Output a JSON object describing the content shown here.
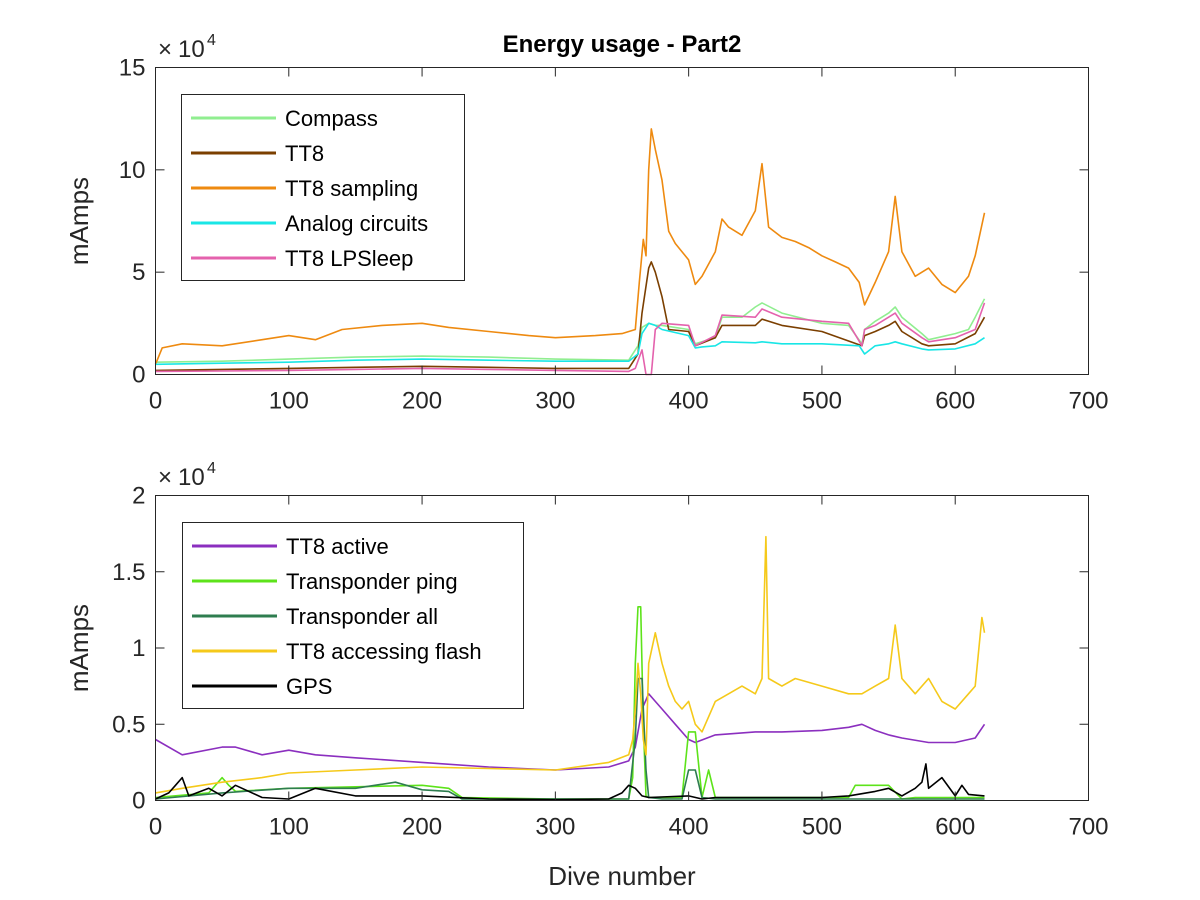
{
  "chart_data": [
    {
      "type": "line",
      "title": "Energy usage - Part2",
      "xlabel": "",
      "ylabel": "mAmps",
      "xlim": [
        0,
        700
      ],
      "ylim": [
        0,
        150000
      ],
      "y_multiplier": {
        "base": "10",
        "exponent": "4"
      },
      "x_ticks": [
        0,
        100,
        200,
        300,
        400,
        500,
        600,
        700
      ],
      "y_ticks": [
        0,
        5,
        10,
        15
      ],
      "grid": false,
      "legend_position": "top-left",
      "series": [
        {
          "name": "Compass",
          "color": "#90ee90",
          "x": [
            0,
            50,
            100,
            150,
            200,
            250,
            300,
            355,
            362,
            365,
            370,
            375,
            380,
            400,
            405,
            420,
            425,
            440,
            450,
            455,
            470,
            500,
            520,
            530,
            532,
            540,
            550,
            555,
            560,
            575,
            580,
            600,
            610,
            615,
            622
          ],
          "y": [
            6000,
            6500,
            7500,
            8500,
            9000,
            8500,
            7500,
            7000,
            14000,
            23000,
            25000,
            24000,
            24000,
            22000,
            15000,
            18000,
            28000,
            28000,
            33000,
            35000,
            30000,
            25000,
            24000,
            15000,
            22000,
            26000,
            30000,
            33000,
            28000,
            20000,
            17000,
            20000,
            22000,
            28000,
            37000
          ]
        },
        {
          "name": "TT8",
          "color": "#7b3f00",
          "x": [
            0,
            50,
            100,
            150,
            200,
            250,
            300,
            355,
            362,
            365,
            370,
            372,
            375,
            380,
            385,
            400,
            405,
            420,
            425,
            450,
            455,
            470,
            500,
            530,
            532,
            540,
            550,
            555,
            560,
            575,
            580,
            600,
            615,
            622
          ],
          "y": [
            2000,
            2500,
            3000,
            3500,
            4000,
            3500,
            3000,
            3000,
            10000,
            30000,
            52000,
            55000,
            50000,
            38000,
            22000,
            21000,
            14000,
            18000,
            24000,
            24000,
            27000,
            24000,
            21000,
            14000,
            19000,
            21000,
            24000,
            26000,
            21000,
            15000,
            14000,
            15000,
            20000,
            28000
          ]
        },
        {
          "name": "TT8 sampling",
          "color": "#ee8a10",
          "x": [
            0,
            5,
            20,
            50,
            80,
            100,
            120,
            140,
            170,
            200,
            220,
            250,
            280,
            300,
            330,
            350,
            360,
            363,
            366,
            368,
            370,
            372,
            375,
            380,
            385,
            390,
            395,
            400,
            405,
            410,
            420,
            425,
            430,
            440,
            450,
            455,
            460,
            470,
            480,
            490,
            500,
            510,
            520,
            528,
            532,
            540,
            550,
            555,
            560,
            570,
            580,
            590,
            600,
            610,
            615,
            622
          ],
          "y": [
            5000,
            13000,
            15000,
            14000,
            17000,
            19000,
            17000,
            22000,
            24000,
            25000,
            23000,
            21000,
            19000,
            18000,
            19000,
            20000,
            22000,
            45000,
            66000,
            58000,
            100000,
            120000,
            110000,
            95000,
            70000,
            64000,
            60000,
            56000,
            44000,
            48000,
            60000,
            76000,
            72000,
            68000,
            80000,
            103000,
            72000,
            67000,
            65000,
            62000,
            58000,
            55000,
            52000,
            45000,
            34000,
            45000,
            60000,
            87000,
            60000,
            48000,
            52000,
            44000,
            40000,
            48000,
            58000,
            79000
          ]
        },
        {
          "name": "Analog circuits",
          "color": "#19e6e6",
          "x": [
            0,
            50,
            100,
            150,
            200,
            250,
            300,
            355,
            362,
            365,
            370,
            375,
            380,
            400,
            405,
            410,
            420,
            425,
            450,
            455,
            470,
            500,
            528,
            532,
            540,
            550,
            555,
            560,
            575,
            580,
            600,
            615,
            622
          ],
          "y": [
            5000,
            5500,
            6000,
            7000,
            7500,
            7000,
            6500,
            6500,
            10000,
            20000,
            25000,
            24000,
            22000,
            19000,
            13000,
            13500,
            14000,
            16000,
            15500,
            16000,
            15000,
            15000,
            14000,
            10000,
            14000,
            15000,
            16000,
            15000,
            12500,
            12000,
            12500,
            15000,
            18000
          ]
        },
        {
          "name": "TT8 LPSleep",
          "color": "#e462ad",
          "x": [
            0,
            50,
            100,
            150,
            200,
            250,
            300,
            355,
            360,
            365,
            368,
            370,
            372,
            375,
            380,
            400,
            405,
            420,
            425,
            450,
            455,
            470,
            500,
            520,
            530,
            532,
            540,
            550,
            555,
            560,
            575,
            580,
            600,
            615,
            622
          ],
          "y": [
            1500,
            1700,
            2000,
            2500,
            3000,
            2500,
            2000,
            1500,
            3000,
            12000,
            0,
            0,
            0,
            22000,
            25000,
            24000,
            14000,
            19000,
            29000,
            28000,
            32000,
            28000,
            26000,
            25000,
            14000,
            22000,
            24000,
            28000,
            30000,
            25000,
            18000,
            16000,
            18000,
            22000,
            35000
          ]
        }
      ]
    },
    {
      "type": "line",
      "title": "",
      "xlabel": "Dive number",
      "ylabel": "mAmps",
      "xlim": [
        0,
        700
      ],
      "ylim": [
        0,
        20000
      ],
      "y_multiplier": {
        "base": "10",
        "exponent": "4"
      },
      "x_ticks": [
        0,
        100,
        200,
        300,
        400,
        500,
        600,
        700
      ],
      "y_ticks": [
        0,
        0.5,
        1,
        1.5,
        2
      ],
      "grid": false,
      "legend_position": "top-left",
      "series": [
        {
          "name": "TT8 active",
          "color": "#8b2fbf",
          "x": [
            0,
            20,
            50,
            60,
            80,
            100,
            120,
            150,
            200,
            250,
            300,
            340,
            355,
            360,
            365,
            370,
            375,
            380,
            390,
            400,
            405,
            420,
            450,
            470,
            500,
            520,
            530,
            540,
            550,
            560,
            580,
            600,
            615,
            622
          ],
          "y": [
            4000,
            3000,
            3500,
            3500,
            3000,
            3300,
            3000,
            2800,
            2500,
            2200,
            2000,
            2200,
            2600,
            3500,
            6000,
            7000,
            6500,
            6000,
            5000,
            4000,
            3800,
            4300,
            4500,
            4500,
            4600,
            4800,
            5000,
            4600,
            4300,
            4100,
            3800,
            3800,
            4100,
            5000
          ]
        },
        {
          "name": "Transponder ping",
          "color": "#5de31a",
          "x": [
            0,
            40,
            50,
            55,
            60,
            100,
            150,
            200,
            220,
            230,
            300,
            355,
            358,
            360,
            362,
            364,
            366,
            368,
            370,
            380,
            395,
            400,
            405,
            410,
            415,
            420,
            520,
            525,
            540,
            550,
            560,
            570,
            600,
            622
          ],
          "y": [
            200,
            500,
            1500,
            1000,
            600,
            800,
            900,
            1000,
            800,
            200,
            100,
            100,
            1500,
            9000,
            12700,
            12700,
            5000,
            300,
            200,
            200,
            200,
            4500,
            4500,
            200,
            2000,
            200,
            200,
            1000,
            1000,
            1000,
            100,
            200,
            200,
            200
          ]
        },
        {
          "name": "Transponder all",
          "color": "#2e7d4f",
          "x": [
            0,
            50,
            100,
            150,
            180,
            200,
            220,
            230,
            300,
            355,
            360,
            362,
            365,
            368,
            370,
            380,
            395,
            400,
            405,
            410,
            420,
            600,
            622
          ],
          "y": [
            100,
            500,
            800,
            800,
            1200,
            700,
            600,
            100,
            100,
            100,
            4000,
            8000,
            8000,
            2000,
            200,
            100,
            100,
            2000,
            2000,
            200,
            100,
            100,
            100
          ]
        },
        {
          "name": "TT8 accessing flash",
          "color": "#f5c91a",
          "x": [
            0,
            20,
            50,
            80,
            100,
            150,
            200,
            250,
            300,
            340,
            355,
            358,
            360,
            362,
            364,
            366,
            368,
            370,
            375,
            380,
            385,
            390,
            395,
            400,
            405,
            410,
            420,
            430,
            440,
            450,
            455,
            458,
            460,
            470,
            480,
            500,
            520,
            530,
            540,
            550,
            555,
            560,
            570,
            580,
            590,
            600,
            610,
            615,
            620,
            622
          ],
          "y": [
            500,
            800,
            1200,
            1500,
            1800,
            2000,
            2200,
            2100,
            2000,
            2500,
            3000,
            4000,
            6000,
            9000,
            7000,
            4000,
            3000,
            9000,
            11000,
            9000,
            7500,
            6500,
            6000,
            6500,
            5000,
            4500,
            6500,
            7000,
            7500,
            7000,
            8000,
            17300,
            8000,
            7500,
            8000,
            7500,
            7000,
            7000,
            7500,
            8000,
            11500,
            8000,
            7000,
            8000,
            6500,
            6000,
            7000,
            7500,
            12000,
            11000
          ]
        },
        {
          "name": "GPS",
          "color": "#000000",
          "x": [
            0,
            10,
            15,
            20,
            25,
            40,
            50,
            60,
            80,
            100,
            120,
            150,
            200,
            250,
            300,
            340,
            350,
            355,
            360,
            365,
            370,
            400,
            410,
            420,
            500,
            520,
            540,
            550,
            560,
            570,
            575,
            578,
            580,
            590,
            600,
            605,
            610,
            622
          ],
          "y": [
            100,
            500,
            1000,
            1500,
            300,
            800,
            300,
            1000,
            200,
            100,
            800,
            300,
            300,
            100,
            50,
            100,
            500,
            1000,
            800,
            300,
            200,
            300,
            100,
            200,
            200,
            300,
            600,
            800,
            300,
            800,
            1200,
            2400,
            800,
            1500,
            300,
            1000,
            400,
            300
          ]
        }
      ]
    }
  ]
}
